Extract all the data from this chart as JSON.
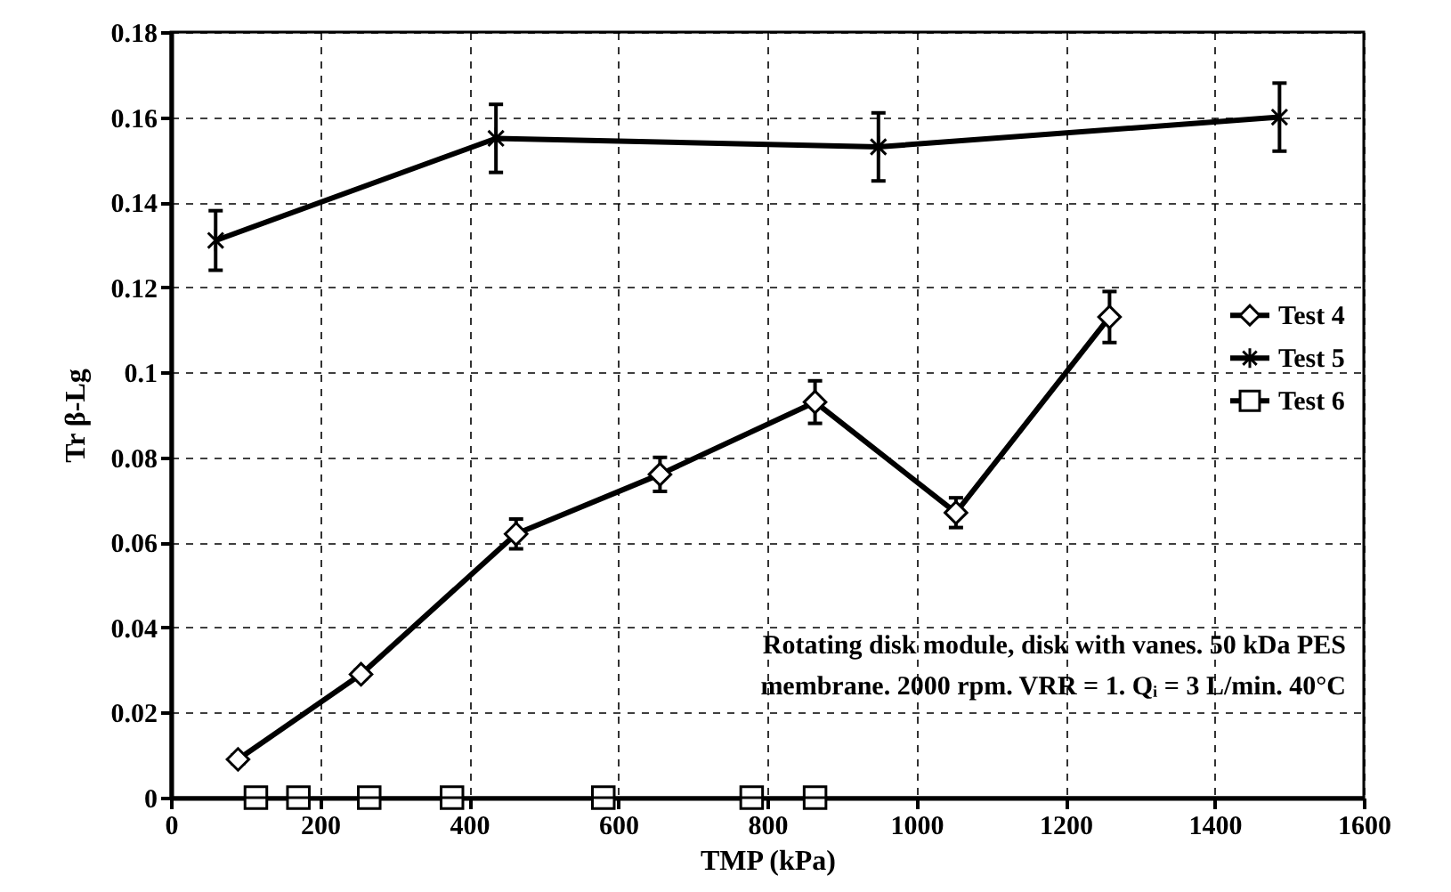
{
  "chart_data": {
    "type": "line",
    "xlabel": "TMP (kPa)",
    "ylabel": "Tr β-Lg",
    "xlim": [
      0,
      1600
    ],
    "xticks": [
      0,
      200,
      400,
      600,
      800,
      1000,
      1200,
      1400,
      1600
    ],
    "ylim": [
      0,
      0.18
    ],
    "yticks": [
      0,
      0.02,
      0.04,
      0.06,
      0.08,
      0.1,
      0.12,
      0.14,
      0.16,
      0.18
    ],
    "grid": true,
    "legend": "right",
    "line_style": "solid",
    "annotations": [
      "Rotating disk module, disk with vanes. 50 kDa PES",
      "membrane. 2000 rpm. VRR = 1. Qᵢ = 3 L/min. 40°C"
    ],
    "series": [
      {
        "name": "Test 4",
        "color": "#000000",
        "marker": "diamond",
        "x": [
          90,
          255,
          463,
          656,
          864,
          1053,
          1259
        ],
        "values": [
          0.009,
          0.029,
          0.062,
          0.076,
          0.093,
          0.067,
          0.113
        ],
        "errors": [
          0.001,
          0.001,
          0.0035,
          0.004,
          0.005,
          0.0035,
          0.006
        ]
      },
      {
        "name": "Test 5",
        "color": "#000000",
        "marker": "cross",
        "x": [
          60,
          436,
          949,
          1487
        ],
        "values": [
          0.131,
          0.155,
          0.153,
          0.16
        ],
        "errors": [
          0.007,
          0.008,
          0.008,
          0.008
        ]
      },
      {
        "name": "Test 6",
        "color": "#000000",
        "marker": "square",
        "type": "scatter",
        "x": [
          114,
          171,
          266,
          377,
          580,
          779,
          864
        ],
        "values": [
          0,
          0,
          0,
          0,
          0,
          0,
          0
        ]
      }
    ]
  }
}
